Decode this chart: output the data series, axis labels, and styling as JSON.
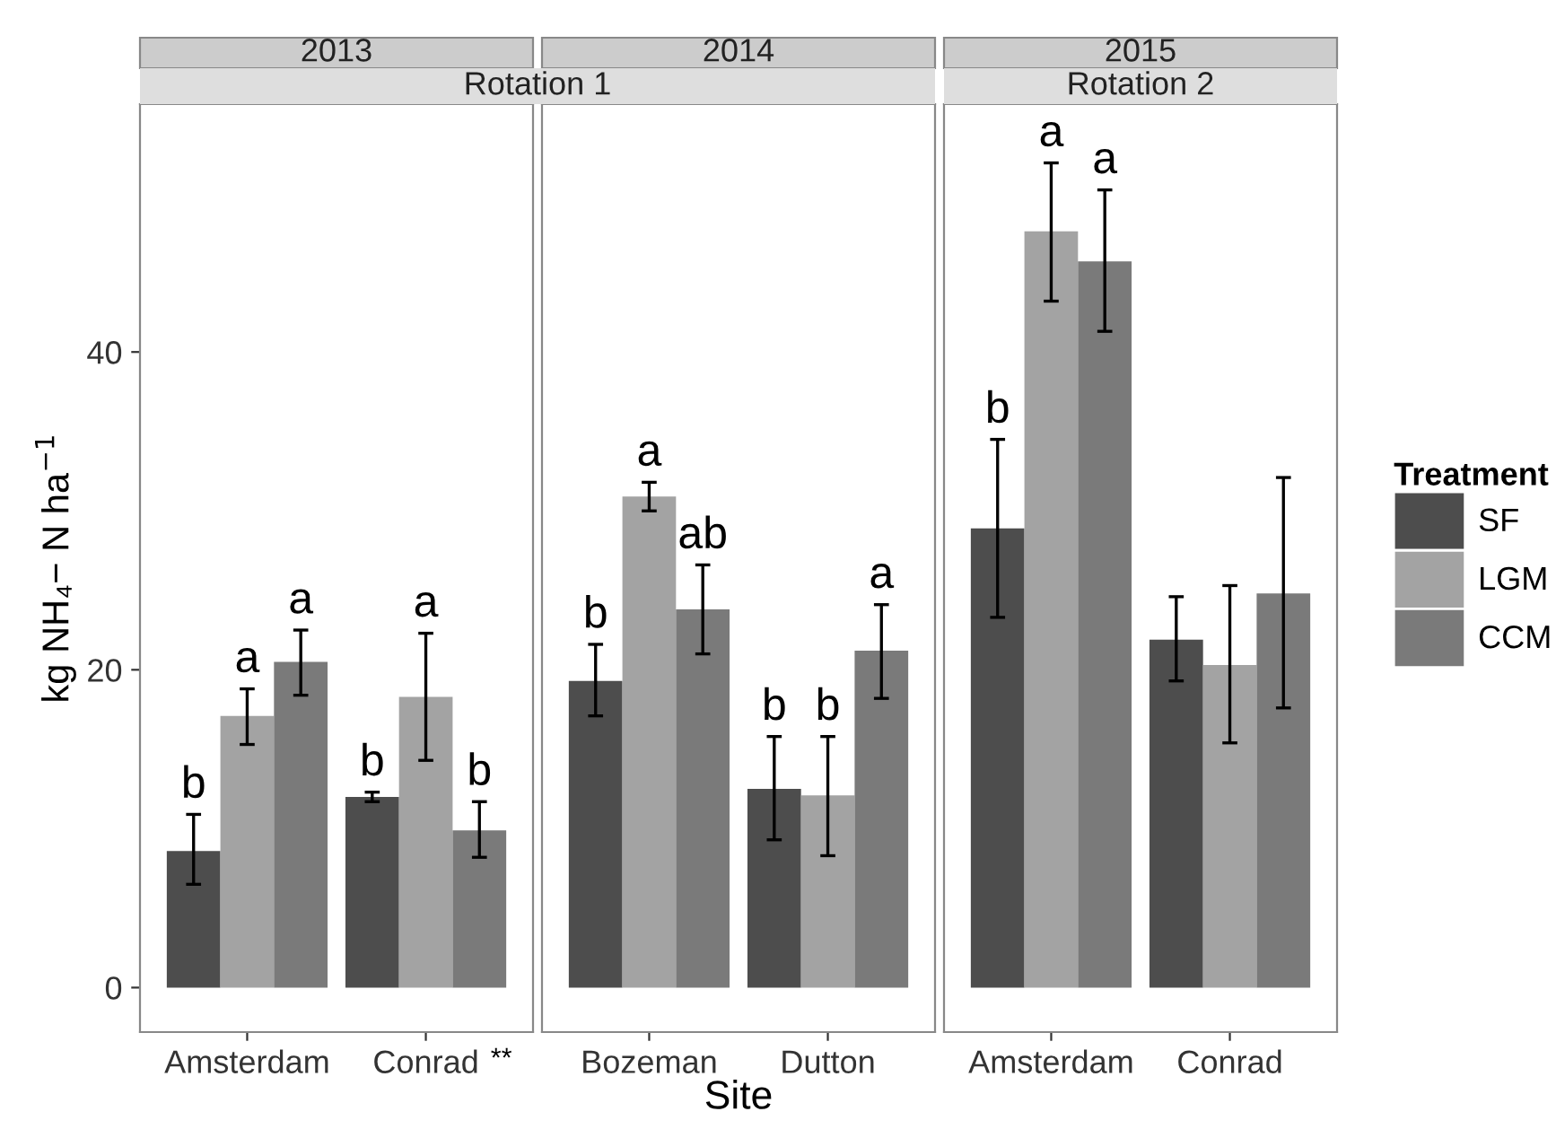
{
  "chart_data": [
    {
      "type": "bar",
      "title": "2013",
      "subtitle": "Rotation 1",
      "ylabel": "kg NH₄− N ha$^{−1}$",
      "categories": [
        "Amsterdam",
        "Conrad"
      ],
      "ylim": [
        -2.8,
        55.6
      ],
      "yticks": [
        0,
        20,
        40
      ],
      "grid": false,
      "series": [
        {
          "color": "#4d4d4d",
          "values": [
            8.6,
            12.0
          ],
          "errors": [
            [
              6.5,
              10.9
            ],
            [
              11.7,
              12.3
            ]
          ]
        },
        {
          "color": "#a3a3a3",
          "values": [
            17.1,
            18.3
          ],
          "errors": [
            [
              15.3,
              18.8
            ],
            [
              14.3,
              22.3
            ]
          ]
        },
        {
          "color": "#7a7a7a",
          "values": [
            20.5,
            9.9
          ],
          "errors": [
            [
              18.4,
              22.5
            ],
            [
              8.2,
              11.7
            ]
          ]
        }
      ],
      "annotations": [
        "b",
        "a",
        "a",
        "b",
        "a",
        "b",
        "**"
      ]
    },
    {
      "type": "bar",
      "title": "2014",
      "xlabel": "Site",
      "categories": [
        "Bozeman",
        "Dutton"
      ],
      "ylim": [
        -2.8,
        55.6
      ],
      "yticks": [
        0,
        20,
        40
      ],
      "tick_labels": "x",
      "grid": false,
      "series": [
        {
          "color": "#4d4d4d",
          "values": [
            19.3,
            12.5
          ],
          "errors": [
            [
              17.1,
              21.6
            ],
            [
              9.3,
              15.8
            ]
          ]
        },
        {
          "color": "#a3a3a3",
          "values": [
            30.9,
            12.1
          ],
          "errors": [
            [
              30.0,
              31.8
            ],
            [
              8.3,
              15.8
            ]
          ]
        },
        {
          "color": "#7a7a7a",
          "values": [
            23.8,
            21.2
          ],
          "errors": [
            [
              21.0,
              26.6
            ],
            [
              18.2,
              24.1
            ]
          ]
        }
      ],
      "annotations": [
        "b",
        "a",
        "ab",
        "b",
        "b",
        "a"
      ]
    },
    {
      "type": "bar",
      "title": "2015",
      "subtitle": "Rotation 2",
      "categories": [
        "Amsterdam",
        "Conrad"
      ],
      "ylim": [
        -2.8,
        55.6
      ],
      "yticks": [
        0,
        20,
        40
      ],
      "tick_labels": "x",
      "grid": false,
      "legend": "right",
      "legend_title": "Treatment",
      "series": [
        {
          "name": "SF",
          "color": "#4d4d4d",
          "values": [
            28.9,
            21.9
          ],
          "errors": [
            [
              23.3,
              34.5
            ],
            [
              19.3,
              24.6
            ]
          ]
        },
        {
          "name": "LGM",
          "color": "#a3a3a3",
          "values": [
            47.6,
            20.3
          ],
          "errors": [
            [
              43.2,
              51.9
            ],
            [
              15.4,
              25.3
            ]
          ]
        },
        {
          "name": "CCM",
          "color": "#7a7a7a",
          "values": [
            45.7,
            24.8
          ],
          "errors": [
            [
              41.3,
              50.2
            ],
            [
              17.6,
              32.1
            ]
          ]
        }
      ],
      "annotations": [
        "b",
        "a",
        "a"
      ]
    }
  ]
}
